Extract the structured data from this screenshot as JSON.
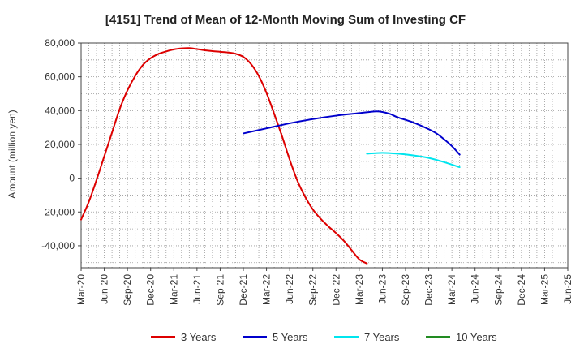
{
  "chart_data": {
    "type": "line",
    "title": "[4151]  Trend of Mean of 12-Month Moving Sum of Investing CF",
    "ylabel": "Amount (million yen)",
    "xlabel": "",
    "ylim": [
      -53000,
      80000
    ],
    "yticks": [
      80000,
      60000,
      40000,
      20000,
      0,
      -20000,
      -40000
    ],
    "ytick_labels": [
      "80,000",
      "60,000",
      "40,000",
      "20,000",
      "0",
      "-20,000",
      "-40,000"
    ],
    "xtick_labels": [
      "Mar-20",
      "Jun-20",
      "Sep-20",
      "Dec-20",
      "Mar-21",
      "Jun-21",
      "Sep-21",
      "Dec-21",
      "Mar-22",
      "Jun-22",
      "Sep-22",
      "Dec-22",
      "Mar-23",
      "Jun-23",
      "Sep-23",
      "Dec-23",
      "Mar-24",
      "Jun-24",
      "Sep-24",
      "Dec-24",
      "Mar-25",
      "Jun-25"
    ],
    "grid": true,
    "legend_position": "bottom",
    "series": [
      {
        "name": "3 Years",
        "color": "#dd0000",
        "values": [
          [
            0,
            -24500
          ],
          [
            1,
            -14000
          ],
          [
            2,
            -1000
          ],
          [
            3,
            13000
          ],
          [
            4,
            27000
          ],
          [
            5,
            41000
          ],
          [
            6,
            52000
          ],
          [
            7,
            60500
          ],
          [
            8,
            67000
          ],
          [
            9,
            71000
          ],
          [
            10,
            73500
          ],
          [
            11,
            75000
          ],
          [
            12,
            76200
          ],
          [
            13,
            76800
          ],
          [
            14,
            77000
          ],
          [
            15,
            76400
          ],
          [
            16,
            75700
          ],
          [
            17,
            75200
          ],
          [
            18,
            74800
          ],
          [
            19,
            74400
          ],
          [
            20,
            73600
          ],
          [
            21,
            71800
          ],
          [
            22,
            67500
          ],
          [
            23,
            60500
          ],
          [
            24,
            50500
          ],
          [
            25,
            38000
          ],
          [
            26,
            25000
          ],
          [
            27,
            11000
          ],
          [
            28,
            -1500
          ],
          [
            29,
            -11000
          ],
          [
            30,
            -18500
          ],
          [
            31,
            -24000
          ],
          [
            32,
            -28500
          ],
          [
            33,
            -32500
          ],
          [
            34,
            -37000
          ],
          [
            35,
            -42500
          ],
          [
            36,
            -48000
          ],
          [
            37,
            -50500
          ]
        ]
      },
      {
        "name": "5 Years",
        "color": "#0000cc",
        "values": [
          [
            21,
            26500
          ],
          [
            24,
            29500
          ],
          [
            27,
            32500
          ],
          [
            30,
            35000
          ],
          [
            33,
            37000
          ],
          [
            36,
            38500
          ],
          [
            38,
            39500
          ],
          [
            39,
            39200
          ],
          [
            40,
            38000
          ],
          [
            41,
            36000
          ],
          [
            43,
            33000
          ],
          [
            45,
            29000
          ],
          [
            46,
            26500
          ],
          [
            47,
            23000
          ],
          [
            48,
            19000
          ],
          [
            49,
            14000
          ]
        ]
      },
      {
        "name": "7 Years",
        "color": "#00e5ee",
        "values": [
          [
            37,
            14500
          ],
          [
            39,
            15000
          ],
          [
            41,
            14500
          ],
          [
            43,
            13500
          ],
          [
            45,
            12000
          ],
          [
            47,
            9500
          ],
          [
            49,
            6500
          ]
        ]
      },
      {
        "name": "10 Years",
        "color": "#228b22",
        "values": []
      }
    ]
  }
}
